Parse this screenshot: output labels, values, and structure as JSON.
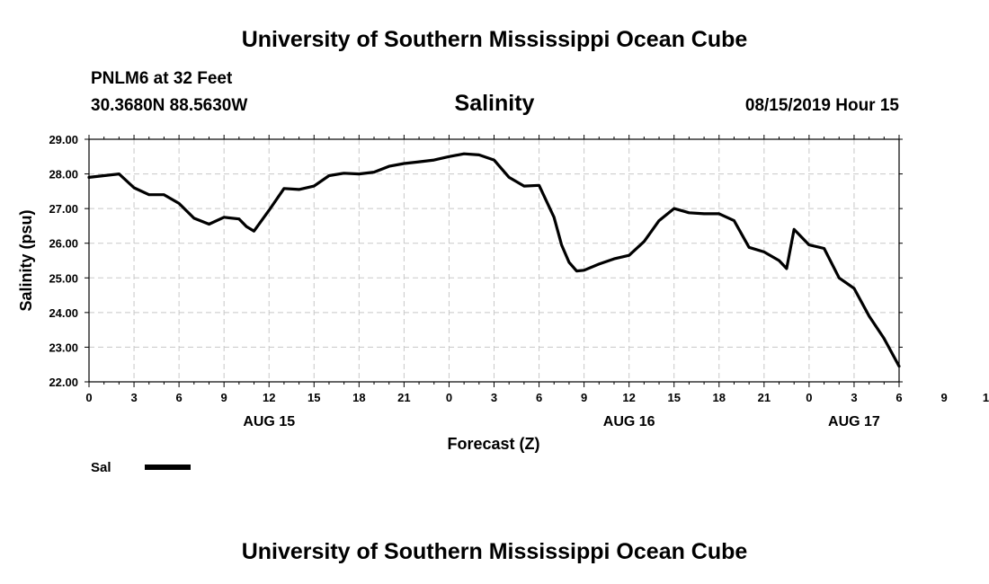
{
  "header": {
    "title": "University of Southern Mississippi Ocean Cube",
    "station": "PNLM6 at 32 Feet",
    "coords": "30.3680N 88.5630W",
    "datetime": "08/15/2019 Hour 15"
  },
  "footer": {
    "title": "University of Southern Mississippi Ocean Cube"
  },
  "chart_data": {
    "type": "line",
    "title": "Salinity",
    "xlabel": "Forecast (Z)",
    "ylabel": "Salinity (psu)",
    "ylim": [
      22.0,
      29.0
    ],
    "yticks": [
      "22.00",
      "23.00",
      "24.00",
      "25.00",
      "26.00",
      "27.00",
      "28.00",
      "29.00"
    ],
    "xlim": [
      0,
      54
    ],
    "xtick_labels": [
      "0",
      "3",
      "6",
      "9",
      "12",
      "15",
      "18",
      "21",
      "0",
      "3",
      "6",
      "9",
      "12",
      "15",
      "18",
      "21",
      "0",
      "3",
      "6",
      "9",
      "12",
      "15",
      "18",
      "21",
      "0",
      "3",
      "6"
    ],
    "day_labels": [
      {
        "label": "AUG 15",
        "hour": 12
      },
      {
        "label": "AUG 16",
        "hour": 36
      },
      {
        "label": "AUG 17",
        "hour": 51
      }
    ],
    "grid": true,
    "legend": {
      "position": "bottom-left",
      "label": "Sal"
    },
    "series": [
      {
        "name": "Sal",
        "color": "#000000",
        "x": [
          0,
          1,
          2,
          3,
          4,
          5,
          6,
          7,
          8,
          9,
          10,
          10.5,
          11,
          12,
          13,
          14,
          15,
          16,
          17,
          18,
          19,
          20,
          21,
          22,
          23,
          24,
          25,
          26,
          27,
          28,
          29,
          30,
          31,
          31.5,
          32,
          32.5,
          33,
          34,
          35,
          36,
          37,
          38,
          39,
          40,
          41,
          42,
          43,
          44,
          45,
          46,
          46.5,
          47,
          48,
          49,
          50,
          51,
          52,
          53,
          54
        ],
        "values": [
          27.9,
          27.95,
          28.0,
          27.6,
          27.4,
          27.4,
          27.15,
          26.72,
          26.55,
          26.75,
          26.7,
          26.48,
          26.35,
          26.95,
          27.58,
          27.55,
          27.65,
          27.95,
          28.02,
          28.0,
          28.05,
          28.22,
          28.3,
          28.35,
          28.4,
          28.5,
          28.58,
          28.55,
          28.4,
          27.9,
          27.65,
          27.67,
          26.75,
          25.95,
          25.45,
          25.2,
          25.22,
          25.4,
          25.55,
          25.65,
          26.05,
          26.65,
          27.0,
          26.88,
          26.85,
          26.85,
          26.65,
          25.88,
          25.75,
          25.5,
          25.27,
          26.4,
          25.95,
          25.85,
          25.0,
          24.7,
          23.9,
          23.25,
          22.45
        ]
      }
    ]
  }
}
